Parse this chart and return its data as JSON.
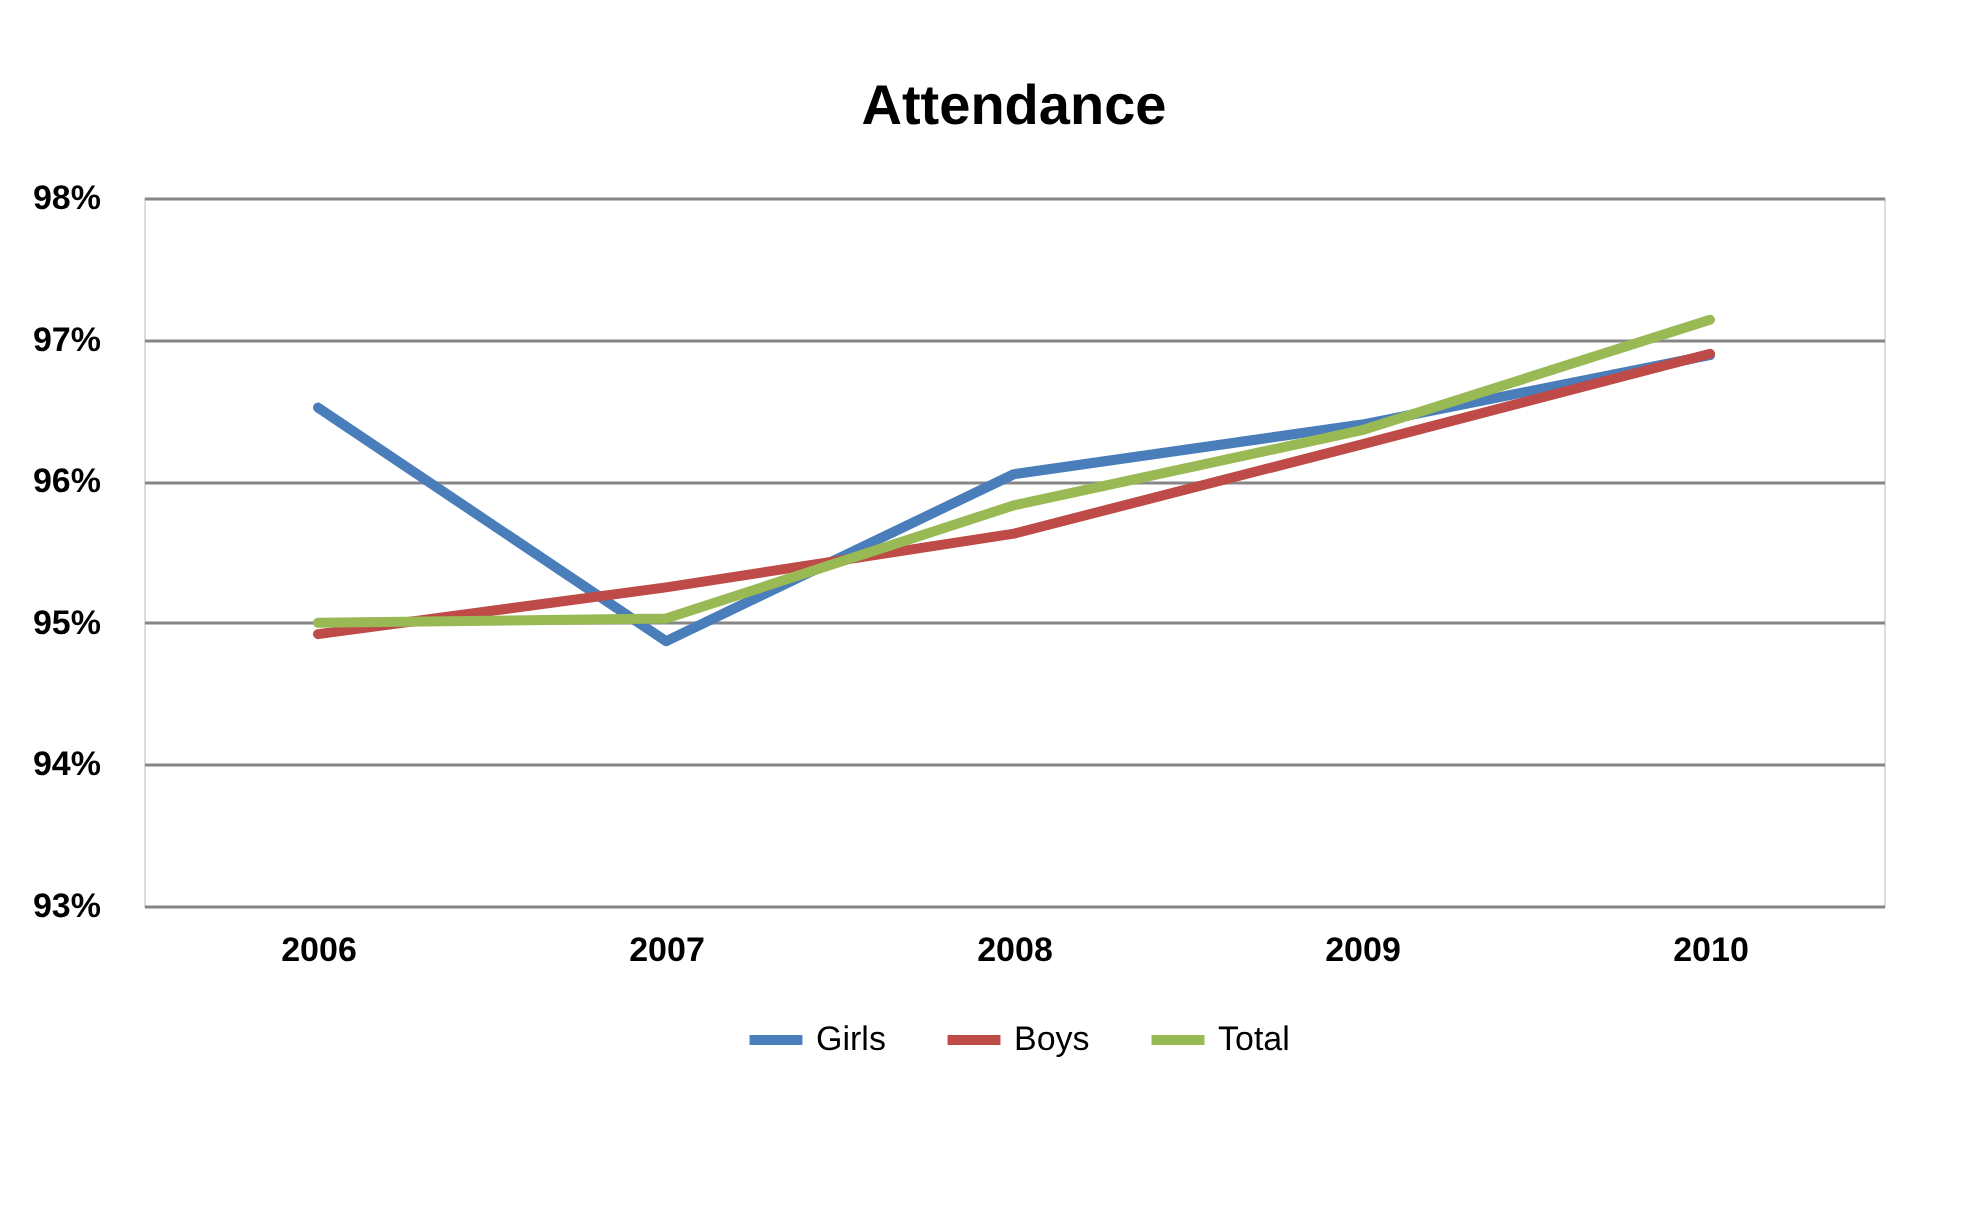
{
  "chart_data": {
    "type": "line",
    "title": "Attendance",
    "categories": [
      "2006",
      "2007",
      "2008",
      "2009",
      "2010"
    ],
    "series": [
      {
        "name": "Girls",
        "color": "#4a7ebb",
        "values": [
          96.52,
          94.87,
          96.05,
          96.4,
          96.89
        ]
      },
      {
        "name": "Boys",
        "color": "#be4b48",
        "values": [
          94.92,
          95.25,
          95.63,
          96.26,
          96.9
        ]
      },
      {
        "name": "Total",
        "color": "#98b954",
        "values": [
          95.0,
          95.03,
          95.83,
          96.36,
          97.14
        ]
      }
    ],
    "ylim": [
      93,
      98
    ],
    "yticks": [
      {
        "value": 93,
        "label": "93%"
      },
      {
        "value": 94,
        "label": "94%"
      },
      {
        "value": 95,
        "label": "95%"
      },
      {
        "value": 96,
        "label": "96%"
      },
      {
        "value": 97,
        "label": "97%"
      },
      {
        "value": 98,
        "label": "98%"
      }
    ],
    "grid": "y",
    "legend": "bottom",
    "marker": "none",
    "line_style": "solid"
  }
}
